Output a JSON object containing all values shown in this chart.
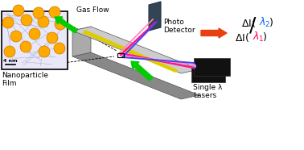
{
  "bg_color": "#ffffff",
  "green_arrow_color": "#00cc00",
  "orange_arrow_color": "#e84010",
  "red_beam_color": "#ff1493",
  "blue_beam_color": "#4444ee",
  "nanoparticle_color": "#ffaa00",
  "nanoparticle_bg": "#e8e8f8",
  "label_nanoparticle": "Nanoparticle\nFilm",
  "label_lasers": "Single λ\nLasers",
  "label_detector": "Photo\nDetector",
  "label_gas": "Gas Flow",
  "label_4nm": "4 nm",
  "text_color": "#000000",
  "red_lambda_color": "#ff0066",
  "blue_lambda_color": "#0066ff"
}
